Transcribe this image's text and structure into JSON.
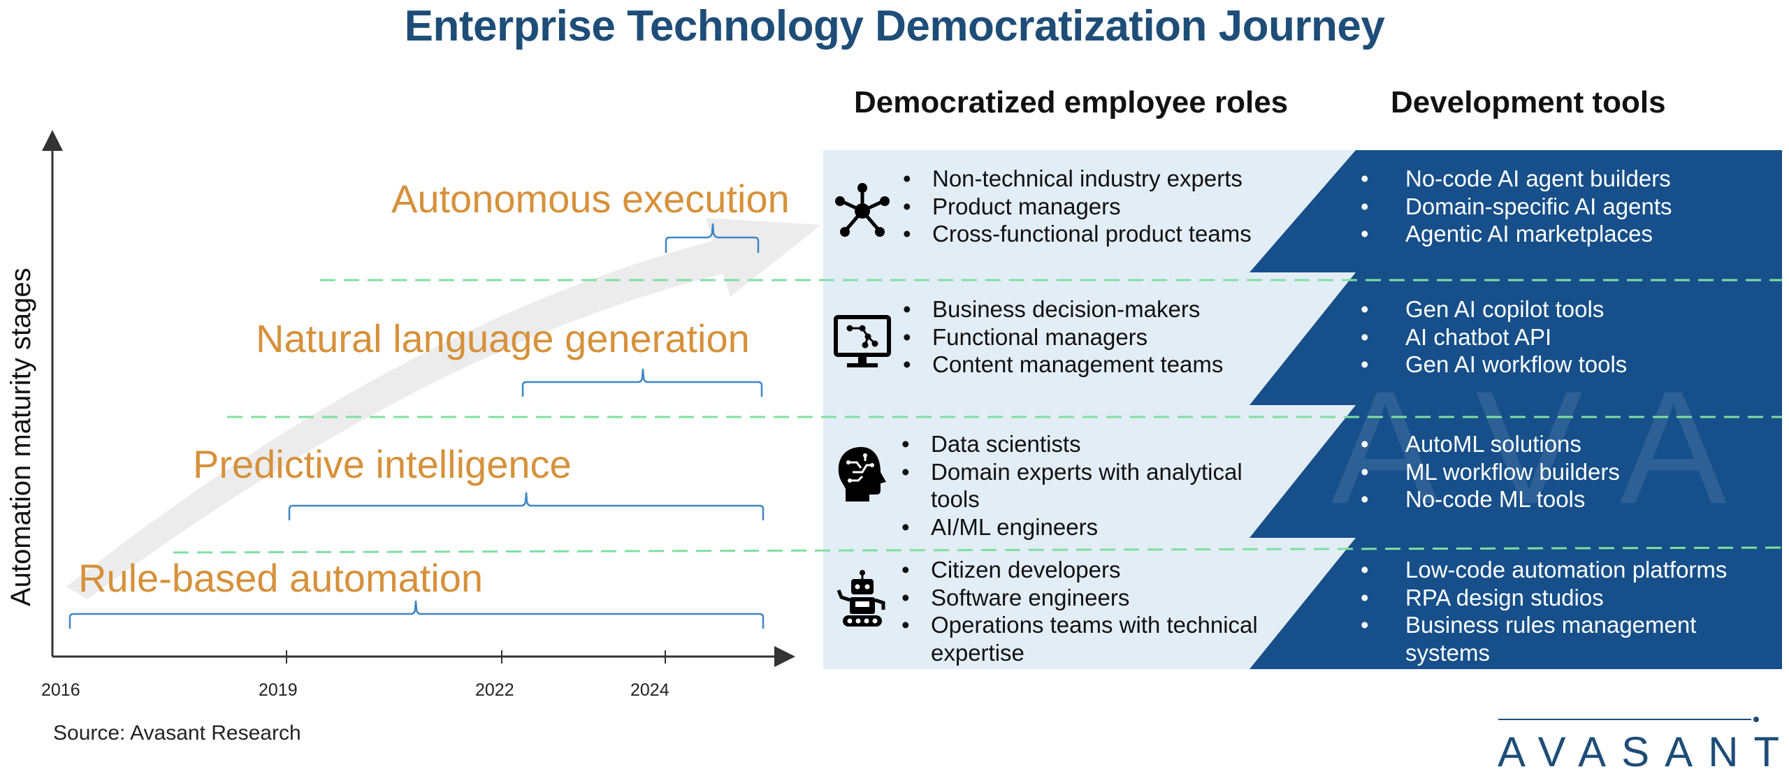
{
  "title": "Enterprise Technology Democratization Journey",
  "headers": {
    "roles": "Democratized employee roles",
    "tools": "Development tools"
  },
  "axis": {
    "ylabel": "Automation maturity stages",
    "years": [
      "2016",
      "2019",
      "2022",
      "2024"
    ]
  },
  "stages": [
    {
      "label": "Autonomous execution",
      "icon": "network-icon",
      "roles": [
        "Non-technical industry experts",
        "Product managers",
        "Cross-functional product teams"
      ],
      "tools": [
        "No-code AI agent builders",
        "Domain-specific AI agents",
        "Agentic AI marketplaces"
      ]
    },
    {
      "label": "Natural language generation",
      "icon": "monitor-icon",
      "roles": [
        "Business decision-makers",
        "Functional managers",
        "Content management teams"
      ],
      "tools": [
        "Gen AI copilot tools",
        "AI chatbot API",
        "Gen AI workflow tools"
      ]
    },
    {
      "label": "Predictive intelligence",
      "icon": "brain-head-icon",
      "roles": [
        "Data scientists",
        "Domain experts with analytical",
        "tools",
        "AI/ML engineers"
      ],
      "tools": [
        "AutoML solutions",
        "ML workflow builders",
        "No-code ML tools"
      ]
    },
    {
      "label": "Rule-based automation",
      "icon": "robot-icon",
      "roles": [
        "Citizen developers",
        "Software engineers",
        "Operations teams with technical",
        "expertise"
      ],
      "tools": [
        "Low-code automation platforms",
        "RPA design studios",
        "Business rules management",
        "systems"
      ]
    }
  ],
  "source": "Source: Avasant Research",
  "brand": "AVASANT",
  "watermark": "AVASANT",
  "colors": {
    "title": "#1e4d78",
    "stage_label": "#d6913b",
    "roles_bg": "#e3edf6",
    "tools_bg": "#164f8a",
    "divider": "#7fe0a0",
    "bracket": "#3f86c4"
  }
}
